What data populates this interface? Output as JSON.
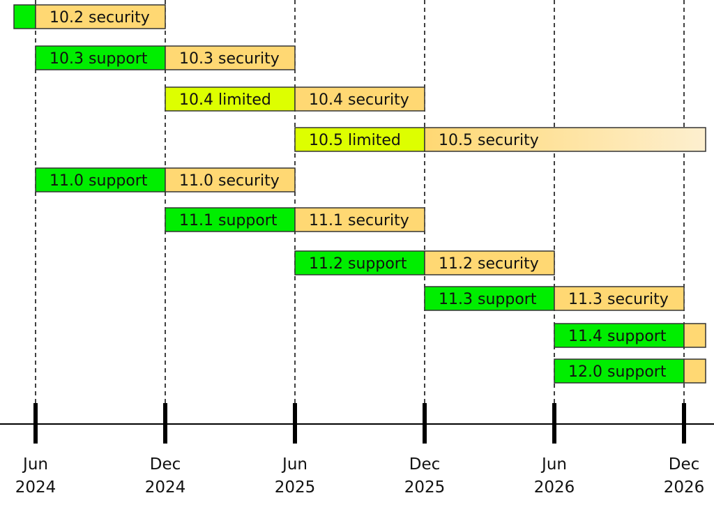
{
  "colors": {
    "support": "#00ee00",
    "limited": "#ddff00",
    "security": "#ffd873",
    "security_fade_end": "#fdefcf",
    "border": "#333333",
    "axis": "#000000"
  },
  "chart_data": {
    "type": "gantt",
    "title": "",
    "xlabel": "",
    "ylabel": "",
    "x_ticks": [
      {
        "date": "2024-06",
        "month": "Jun",
        "year": "2024"
      },
      {
        "date": "2024-12",
        "month": "Dec",
        "year": "2024"
      },
      {
        "date": "2025-06",
        "month": "Jun",
        "year": "2025"
      },
      {
        "date": "2025-12",
        "month": "Dec",
        "year": "2025"
      },
      {
        "date": "2026-06",
        "month": "Jun",
        "year": "2026"
      },
      {
        "date": "2026-12",
        "month": "Dec",
        "year": "2026"
      }
    ],
    "rows": [
      {
        "segments": [
          {
            "label": "",
            "phase": "support",
            "start": "2024-05",
            "end": "2024-06"
          },
          {
            "label": "10.2 security",
            "phase": "security",
            "start": "2024-06",
            "end": "2024-12"
          }
        ]
      },
      {
        "segments": [
          {
            "label": "10.3 support",
            "phase": "support",
            "start": "2024-06",
            "end": "2024-12"
          },
          {
            "label": "10.3 security",
            "phase": "security",
            "start": "2024-12",
            "end": "2025-06"
          }
        ]
      },
      {
        "segments": [
          {
            "label": "10.4 limited",
            "phase": "limited",
            "start": "2024-12",
            "end": "2025-06"
          },
          {
            "label": "10.4 security",
            "phase": "security",
            "start": "2025-06",
            "end": "2025-12"
          }
        ]
      },
      {
        "segments": [
          {
            "label": "10.5 limited",
            "phase": "limited",
            "start": "2025-06",
            "end": "2025-12"
          },
          {
            "label": "10.5 security",
            "phase": "security",
            "start": "2025-12",
            "end": "2027-01",
            "fade": true
          }
        ]
      },
      {
        "segments": [
          {
            "label": "11.0 support",
            "phase": "support",
            "start": "2024-06",
            "end": "2024-12"
          },
          {
            "label": "11.0 security",
            "phase": "security",
            "start": "2024-12",
            "end": "2025-06"
          }
        ]
      },
      {
        "segments": [
          {
            "label": "11.1 support",
            "phase": "support",
            "start": "2024-12",
            "end": "2025-06"
          },
          {
            "label": "11.1 security",
            "phase": "security",
            "start": "2025-06",
            "end": "2025-12"
          }
        ]
      },
      {
        "segments": [
          {
            "label": "11.2 support",
            "phase": "support",
            "start": "2025-06",
            "end": "2025-12"
          },
          {
            "label": "11.2 security",
            "phase": "security",
            "start": "2025-12",
            "end": "2026-06"
          }
        ]
      },
      {
        "segments": [
          {
            "label": "11.3 support",
            "phase": "support",
            "start": "2025-12",
            "end": "2026-06"
          },
          {
            "label": "11.3 security",
            "phase": "security",
            "start": "2026-06",
            "end": "2026-12"
          }
        ]
      },
      {
        "segments": [
          {
            "label": "11.4 support",
            "phase": "support",
            "start": "2026-06",
            "end": "2026-12"
          },
          {
            "label": "",
            "phase": "security",
            "start": "2026-12",
            "end": "2027-01"
          }
        ]
      },
      {
        "segments": [
          {
            "label": "12.0 support",
            "phase": "support",
            "start": "2026-06",
            "end": "2026-12"
          },
          {
            "label": "",
            "phase": "security",
            "start": "2026-12",
            "end": "2027-01"
          }
        ]
      }
    ]
  }
}
